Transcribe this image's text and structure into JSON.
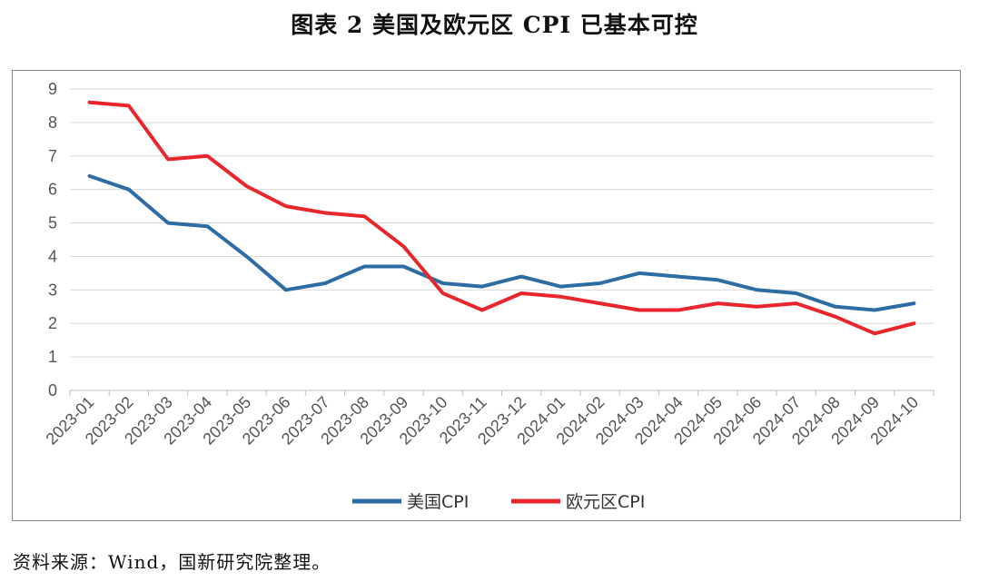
{
  "title": "图表 2  美国及欧元区 CPI 已基本可控",
  "source": "资料来源：Wind，国新研究院整理。",
  "chart_data": {
    "type": "line",
    "ylim": [
      0,
      9
    ],
    "yticks": [
      0,
      1,
      2,
      3,
      4,
      5,
      6,
      7,
      8,
      9
    ],
    "grid": true,
    "legend_position": "bottom",
    "categories": [
      "2023-01",
      "2023-02",
      "2023-03",
      "2023-04",
      "2023-05",
      "2023-06",
      "2023-07",
      "2023-08",
      "2023-09",
      "2023-10",
      "2023-11",
      "2023-12",
      "2024-01",
      "2024-02",
      "2024-03",
      "2024-04",
      "2024-05",
      "2024-06",
      "2024-07",
      "2024-08",
      "2024-09",
      "2024-10"
    ],
    "series": [
      {
        "name": "美国CPI",
        "color": "#2e6ca4",
        "values": [
          6.4,
          6.0,
          5.0,
          4.9,
          4.0,
          3.0,
          3.2,
          3.7,
          3.7,
          3.2,
          3.1,
          3.4,
          3.1,
          3.2,
          3.5,
          3.4,
          3.3,
          3.0,
          2.9,
          2.5,
          2.4,
          2.6
        ]
      },
      {
        "name": "欧元区CPI",
        "color": "#e8262b",
        "values": [
          8.6,
          8.5,
          6.9,
          7.0,
          6.1,
          5.5,
          5.3,
          5.2,
          4.3,
          2.9,
          2.4,
          2.9,
          2.8,
          2.6,
          2.4,
          2.4,
          2.6,
          2.5,
          2.6,
          2.2,
          1.7,
          2.0
        ]
      }
    ]
  }
}
